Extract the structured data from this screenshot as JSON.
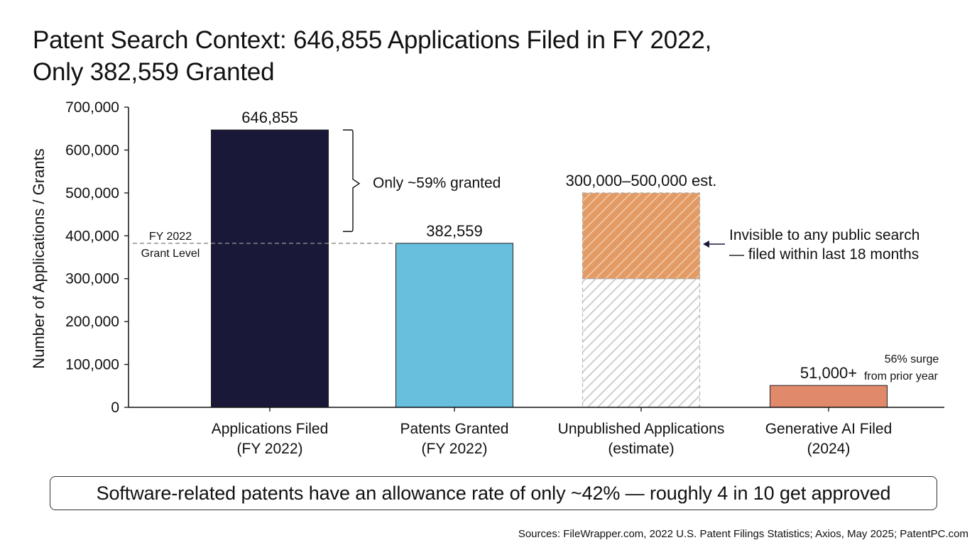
{
  "title": {
    "line1": "Patent Search Context: 646,855 Applications Filed in FY 2022,",
    "line2": "Only 382,559 Granted"
  },
  "chart_data": {
    "type": "bar",
    "ylabel": "Number of Applications / Grants",
    "ylim": [
      0,
      700000
    ],
    "yticks": [
      0,
      100000,
      200000,
      300000,
      400000,
      500000,
      600000,
      700000
    ],
    "ytick_labels": [
      "0",
      "100,000",
      "200,000",
      "300,000",
      "400,000",
      "500,000",
      "600,000",
      "700,000"
    ],
    "grid": false,
    "bars": [
      {
        "category_line1": "Applications Filed",
        "category_line2": "(FY 2022)",
        "value": 646855,
        "label": "646,855",
        "color": "#1a1838",
        "style": "solid"
      },
      {
        "category_line1": "Patents Granted",
        "category_line2": "(FY 2022)",
        "value": 382559,
        "label": "382,559",
        "color": "#68bedd",
        "style": "solid"
      },
      {
        "category_line1": "Unpublished Applications",
        "category_line2": "(estimate)",
        "value_low": 300000,
        "value_high": 500000,
        "label": "300,000–500,000 est.",
        "color": "#e39b66",
        "low_color": "#cfcfcf",
        "style": "hatched-range"
      },
      {
        "category_line1": "Generative AI Filed",
        "category_line2": "(2024)",
        "value": 51000,
        "label": "51,000+",
        "color": "#e08a6b",
        "style": "solid"
      }
    ],
    "reference_line": {
      "value": 382559,
      "label_line1": "FY 2022",
      "label_line2": "Grant Level",
      "style": "dashed"
    },
    "annotations": {
      "bracket_text": "Only ~59% granted",
      "bracket_from": 646855,
      "bracket_to": 410000,
      "arrow_line1": "Invisible to any public search",
      "arrow_line2": "— filed within last 18 months",
      "surge_line1": "56% surge",
      "surge_line2": "from prior year"
    }
  },
  "callout": "Software-related patents have an allowance rate of only ~42% — roughly 4 in 10 get approved",
  "sources": "Sources: FileWrapper.com, 2022 U.S. Patent Filings Statistics; Axios, May 2025; PatentPC.com"
}
